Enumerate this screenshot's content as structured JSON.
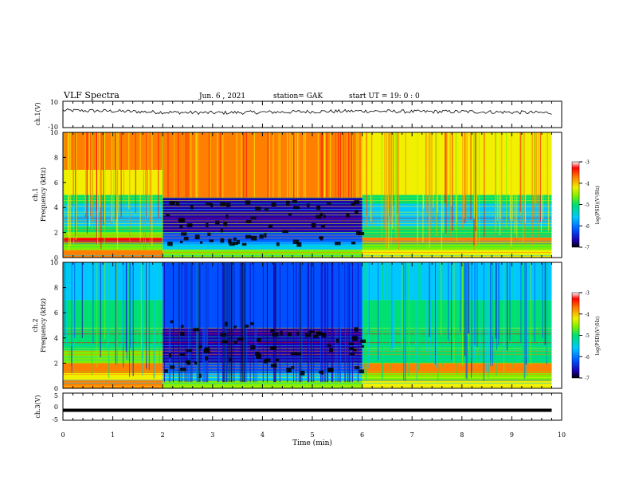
{
  "header": {
    "title": "VLF Spectra",
    "date": "Jun. 6 , 2021",
    "station": "station= GAK",
    "start": "start UT =   19: 0  : 0"
  },
  "colorbar": {
    "label": "log(PSD)(V²/Hz)",
    "ticks": [
      "-3",
      "-4",
      "-5",
      "-6",
      "-7"
    ],
    "colors": [
      "#000000",
      "#1a00b0",
      "#0050ff",
      "#00c8ff",
      "#00e070",
      "#7cf000",
      "#f0f000",
      "#ff8000",
      "#ff0000",
      "#ffffff"
    ]
  },
  "chart_data": [
    {
      "type": "line",
      "panel": "ch1-waveform",
      "ylabel": "ch.1(V)",
      "ylim": [
        -10,
        10
      ],
      "yticks": [
        "10",
        "-10"
      ],
      "x": [
        0,
        1,
        2,
        3,
        4,
        5,
        6,
        7,
        8,
        9,
        9.8
      ],
      "values": [
        3,
        2.5,
        1.5,
        1,
        1.5,
        2,
        2.5,
        2,
        2,
        1.5,
        1
      ]
    },
    {
      "type": "heatmap",
      "panel": "ch1-spectrogram",
      "ylabel": "ch.1\nFrequency (kHz)",
      "xlim": [
        0,
        10
      ],
      "ylim": [
        0,
        10
      ],
      "yticks": [
        "0",
        "2",
        "4",
        "6",
        "8",
        "10"
      ],
      "data_x_end_min": 9.8,
      "quiet_interval_min": [
        2,
        6
      ],
      "quiet_interval_top_khz": 4.8,
      "color_scale": [
        -7,
        -3
      ]
    },
    {
      "type": "heatmap",
      "panel": "ch2-spectrogram",
      "ylabel": "ch.2\nFrequency (kHz)",
      "xlim": [
        0,
        10
      ],
      "ylim": [
        0,
        10
      ],
      "yticks": [
        "0",
        "2",
        "4",
        "6",
        "8",
        "10"
      ],
      "data_x_end_min": 9.8,
      "quiet_interval_min": [
        2,
        6
      ],
      "color_scale": [
        -7,
        -3
      ]
    },
    {
      "type": "line",
      "panel": "ch3-waveform",
      "ylabel": "ch.3(V)",
      "ylim": [
        -5,
        5
      ],
      "yticks": [
        "5",
        "0",
        "-5"
      ],
      "x": [
        0,
        9.8
      ],
      "values": [
        -1.5,
        -1.5
      ]
    }
  ],
  "xaxis": {
    "label": "Time (min)",
    "ticks": [
      "0",
      "1",
      "2",
      "3",
      "4",
      "5",
      "6",
      "7",
      "8",
      "9",
      "10"
    ]
  }
}
